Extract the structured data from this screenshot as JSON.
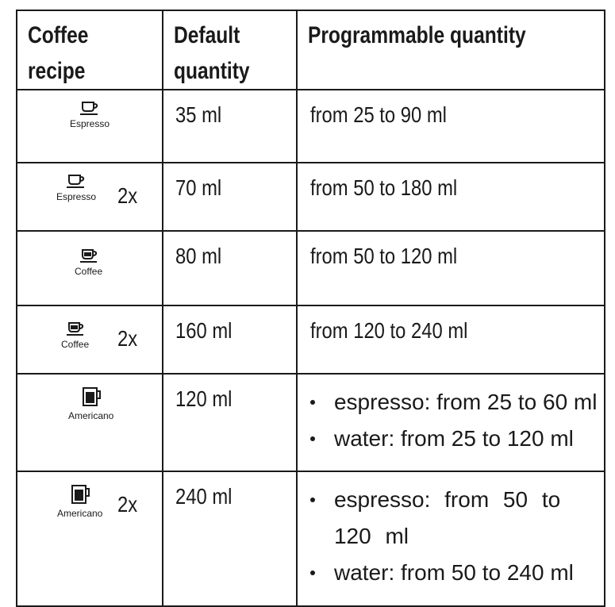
{
  "header": {
    "col1_line1": "Coffee",
    "col1_line2": "recipe",
    "col2_line1": "Default",
    "col2_line2": "quantity",
    "col3": "Programmable quantity"
  },
  "rows": [
    {
      "icon": "cup-small-icon",
      "label": "Espresso",
      "multiplier": "",
      "default": "35 ml",
      "programmable": "from 25 to 90 ml"
    },
    {
      "icon": "cup-small-icon",
      "label": "Espresso",
      "multiplier": "2x",
      "default": "70 ml",
      "programmable": "from 50 to 180 ml"
    },
    {
      "icon": "cup-medium-icon",
      "label": "Coffee",
      "multiplier": "",
      "default": "80 ml",
      "programmable": "from 50 to 120 ml"
    },
    {
      "icon": "cup-medium-icon",
      "label": "Coffee",
      "multiplier": "2x",
      "default": "160 ml",
      "programmable": "from 120 to 240 ml"
    },
    {
      "icon": "mug-icon",
      "label": "Americano",
      "multiplier": "",
      "default": "120 ml",
      "bullets": [
        "espresso: from 25 to 60 ml",
        "water: from 25 to 120 ml"
      ]
    },
    {
      "icon": "mug-icon",
      "label": "Americano",
      "multiplier": "2x",
      "default": "240 ml",
      "bullets": [
        "espresso: from 50 to 120 ml",
        "water: from 50 to 240 ml"
      ]
    }
  ]
}
